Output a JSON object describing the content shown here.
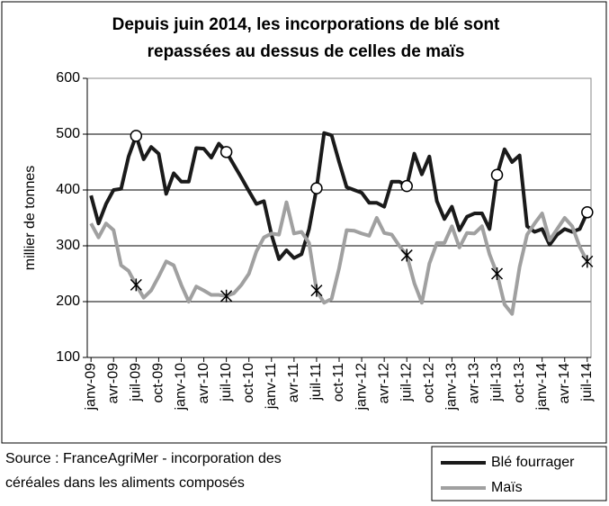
{
  "chart_data": {
    "type": "line",
    "title": [
      "Depuis juin 2014, les incorporations de blé sont",
      "repassées au dessus de celles de maïs"
    ],
    "y_label": "millier de tonnes",
    "source": [
      "Source : FranceAgriMer - incorporation des",
      "céréales dans les aliments composés"
    ],
    "categories": [
      "janv-09",
      null,
      null,
      "avr-09",
      null,
      null,
      "juil-09",
      null,
      null,
      "oct-09",
      null,
      null,
      "janv-10",
      null,
      null,
      "avr-10",
      null,
      null,
      "juil-10",
      null,
      null,
      "oct-10",
      null,
      null,
      "janv-11",
      null,
      null,
      "avr-11",
      null,
      null,
      "juil-11",
      null,
      null,
      "oct-11",
      null,
      null,
      "janv-12",
      null,
      null,
      "avr-12",
      null,
      null,
      "juil-12",
      null,
      null,
      "oct-12",
      null,
      null,
      "janv-13",
      null,
      null,
      "avr-13",
      null,
      null,
      "juil-13",
      null,
      null,
      "oct-13",
      null,
      null,
      "janv-14",
      null,
      null,
      "avr-14",
      null,
      null,
      "juil-14"
    ],
    "series": [
      {
        "name": "Blé fourrager",
        "color": "#1a1a1a",
        "marker": "circle",
        "values": [
          390,
          340,
          375,
          400,
          402,
          460,
          497,
          455,
          477,
          465,
          393,
          430,
          415,
          415,
          475,
          474,
          458,
          483,
          468,
          445,
          422,
          398,
          375,
          380,
          320,
          276,
          292,
          278,
          285,
          330,
          403,
          502,
          498,
          450,
          405,
          400,
          395,
          377,
          377,
          370,
          415,
          415,
          407,
          465,
          428,
          460,
          380,
          348,
          370,
          328,
          352,
          358,
          358,
          330,
          427,
          473,
          450,
          462,
          335,
          325,
          330,
          302,
          320,
          330,
          325,
          330,
          360
        ]
      },
      {
        "name": "Maïs",
        "color": "#a0a0a0",
        "marker": "star",
        "values": [
          340,
          315,
          340,
          328,
          265,
          255,
          230,
          207,
          220,
          245,
          272,
          265,
          230,
          200,
          227,
          220,
          212,
          212,
          210,
          215,
          230,
          250,
          290,
          315,
          322,
          320,
          378,
          322,
          325,
          305,
          220,
          198,
          205,
          260,
          328,
          327,
          322,
          318,
          350,
          323,
          320,
          300,
          283,
          233,
          198,
          268,
          305,
          305,
          335,
          297,
          323,
          322,
          335,
          285,
          250,
          195,
          178,
          262,
          320,
          340,
          358,
          310,
          330,
          350,
          335,
          298,
          272
        ]
      }
    ],
    "ylim": [
      100,
      600
    ],
    "yticks": [
      100,
      200,
      300,
      400,
      500,
      600
    ],
    "grid": true
  }
}
